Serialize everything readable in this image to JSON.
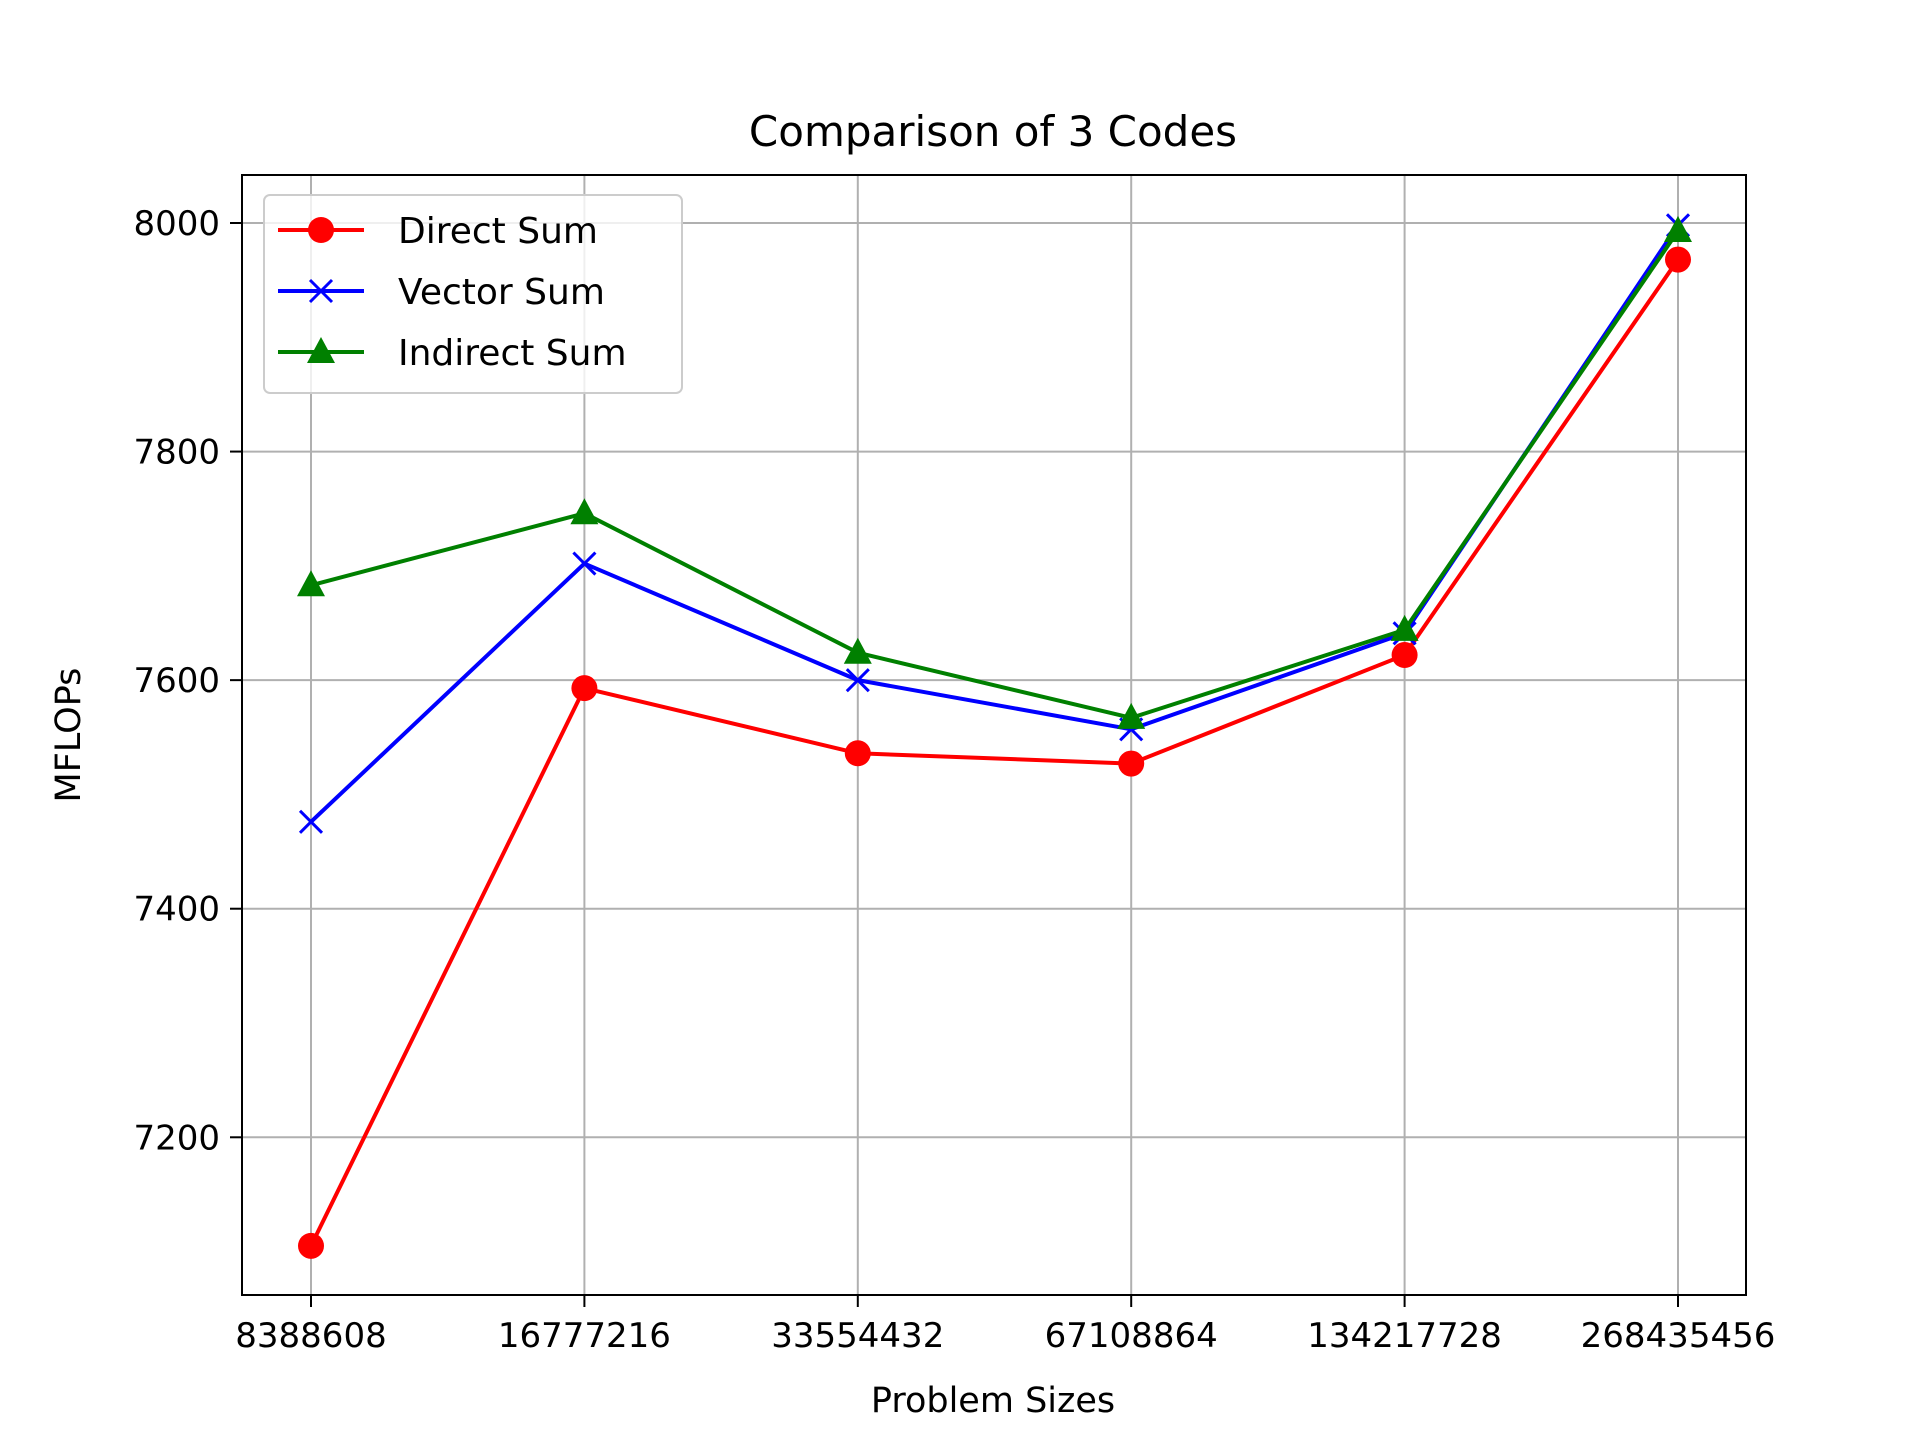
{
  "chart_data": {
    "type": "line",
    "title": "Comparison of 3 Codes",
    "xlabel": "Problem Sizes",
    "ylabel": "MFLOPs",
    "categories": [
      "8388608",
      "16777216",
      "33554432",
      "67108864",
      "134217728",
      "268435456"
    ],
    "ylim": [
      7062,
      8042
    ],
    "yticks": [
      "7200",
      "7400",
      "7600",
      "7800",
      "8000"
    ],
    "grid": true,
    "legend_position": "upper-left",
    "series": [
      {
        "name": "Direct Sum",
        "color": "#ff0000",
        "marker": "circle",
        "values": [
          7105,
          7593,
          7536,
          7527,
          7622,
          7968
        ]
      },
      {
        "name": "Vector Sum",
        "color": "#0000ff",
        "marker": "x",
        "values": [
          7476,
          7702,
          7600,
          7557,
          7641,
          7998
        ]
      },
      {
        "name": "Indirect Sum",
        "color": "#008000",
        "marker": "triangle",
        "values": [
          7683,
          7746,
          7624,
          7567,
          7644,
          7993
        ]
      }
    ]
  }
}
